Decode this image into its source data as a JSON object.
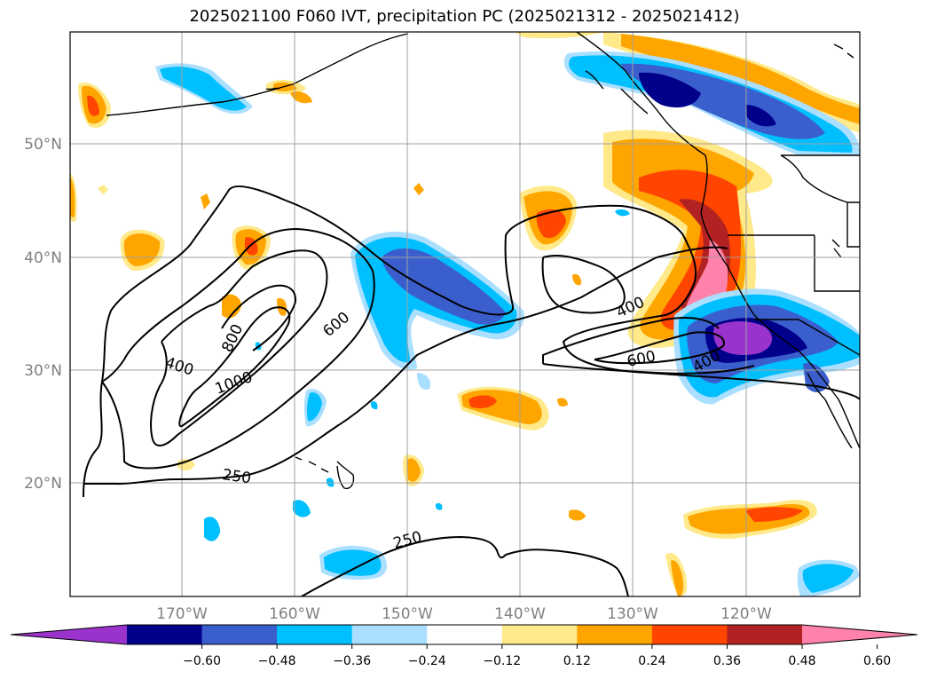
{
  "title": "2025021100 F060 IVT, precipitation PC (2025021312 - 2025021412)",
  "axes": {
    "lat_labels": [
      "50°N",
      "40°N",
      "30°N",
      "20°N"
    ],
    "lon_labels": [
      "170°W",
      "160°W",
      "150°W",
      "140°W",
      "130°W",
      "120°W"
    ],
    "grid": true
  },
  "ivt_contour_labels": [
    "400",
    "800",
    "1000",
    "600",
    "250",
    "250",
    "400",
    "600",
    "400"
  ],
  "colorbar": {
    "extend": "both",
    "colors": [
      "#9933cc",
      "#00008b",
      "#3a5fcd",
      "#00bfff",
      "#aadfff",
      "#ffffff",
      "#ffe989",
      "#ffa500",
      "#ff4500",
      "#b22222",
      "#ff82ab"
    ],
    "tick_labels": [
      "−0.60",
      "−0.48",
      "−0.36",
      "−0.24",
      "−0.12",
      "0.12",
      "0.24",
      "0.36",
      "0.48",
      "0.60"
    ]
  }
}
